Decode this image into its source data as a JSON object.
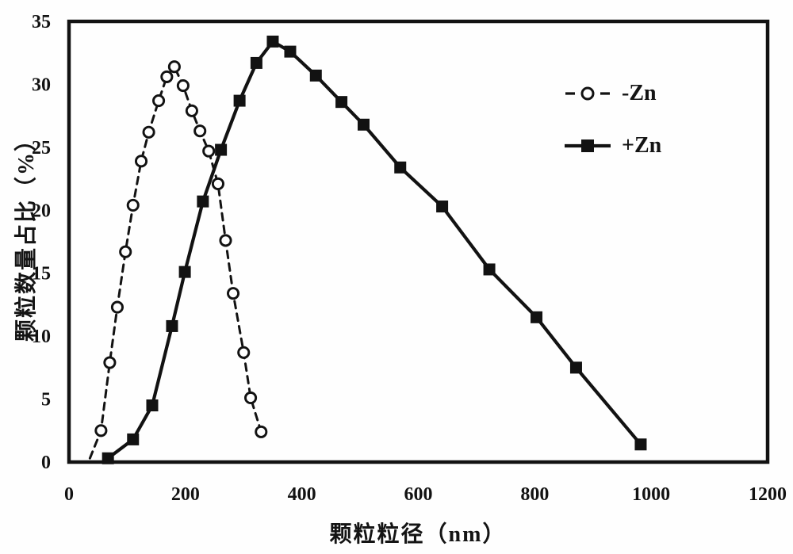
{
  "figure": {
    "background": "#fefefe",
    "ink_color": "#121212"
  },
  "chart_data": {
    "type": "line",
    "title": "",
    "xlabel": "颗粒粒径（nm）",
    "ylabel": "颗粒数量占比（%）",
    "xlim": [
      0,
      1200
    ],
    "ylim": [
      0,
      35
    ],
    "x_ticks": [
      0,
      200,
      400,
      600,
      800,
      1000,
      1200
    ],
    "y_ticks": [
      0,
      5,
      10,
      15,
      20,
      25,
      30,
      35
    ],
    "grid": false,
    "legend_position": "inside-upper-right",
    "series": [
      {
        "name": "-Zn",
        "line_style": "dashed",
        "marker": "open-circle",
        "color": "#121212",
        "lead_in": [
          36,
          0.3
        ],
        "x": [
          55,
          70,
          83,
          97,
          110,
          124,
          137,
          154,
          168,
          181,
          196,
          211,
          225,
          240,
          256,
          269,
          282,
          300,
          312,
          330
        ],
        "y": [
          2.5,
          7.9,
          12.3,
          16.7,
          20.4,
          23.9,
          26.2,
          28.7,
          30.6,
          31.4,
          29.9,
          27.9,
          26.3,
          24.7,
          22.1,
          17.6,
          13.4,
          8.7,
          5.1,
          2.4
        ]
      },
      {
        "name": "+Zn",
        "line_style": "solid",
        "marker": "filled-square",
        "color": "#121212",
        "x": [
          67,
          110,
          143,
          177,
          199,
          230,
          261,
          293,
          322,
          350,
          380,
          424,
          468,
          506,
          569,
          641,
          722,
          803,
          871,
          982
        ],
        "y": [
          0.3,
          1.8,
          4.5,
          10.8,
          15.1,
          20.7,
          24.8,
          28.7,
          31.7,
          33.4,
          32.6,
          30.7,
          28.6,
          26.8,
          23.4,
          20.3,
          15.3,
          11.5,
          7.5,
          1.4
        ]
      }
    ]
  }
}
